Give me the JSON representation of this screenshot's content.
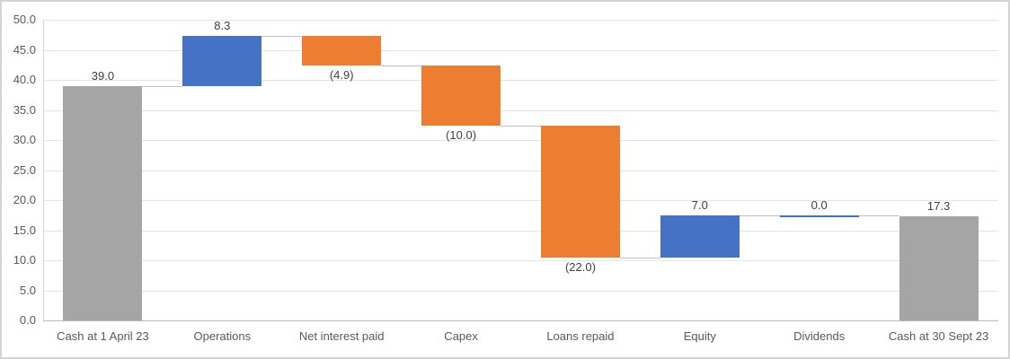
{
  "chart_data": {
    "type": "bar",
    "subtype": "waterfall",
    "title": "",
    "xlabel": "",
    "ylabel": "",
    "ylim": [
      0,
      50
    ],
    "y_tick_step": 5,
    "y_ticks": [
      "0.0",
      "5.0",
      "10.0",
      "15.0",
      "20.0",
      "25.0",
      "30.0",
      "35.0",
      "40.0",
      "45.0",
      "50.0"
    ],
    "grid": true,
    "legend_position": "none",
    "categories": [
      "Cash at 1 April 23",
      "Operations",
      "Net interest paid",
      "Capex",
      "Loans repaid",
      "Equity",
      "Dividends",
      "Cash at 30 Sept 23"
    ],
    "columns": [
      {
        "category": "Cash at 1 April 23",
        "value": 39.0,
        "label": "39.0",
        "role": "total",
        "start": 0,
        "end": 39.0
      },
      {
        "category": "Operations",
        "value": 8.3,
        "label": "8.3",
        "role": "increase",
        "start": 39.0,
        "end": 47.3
      },
      {
        "category": "Net interest paid",
        "value": -4.9,
        "label": "(4.9)",
        "role": "decrease",
        "start": 47.3,
        "end": 42.4
      },
      {
        "category": "Capex",
        "value": -10.0,
        "label": "(10.0)",
        "role": "decrease",
        "start": 42.4,
        "end": 32.4
      },
      {
        "category": "Loans repaid",
        "value": -22.0,
        "label": "(22.0)",
        "role": "decrease",
        "start": 32.4,
        "end": 10.4
      },
      {
        "category": "Equity",
        "value": 7.0,
        "label": "7.0",
        "role": "increase",
        "start": 10.4,
        "end": 17.4
      },
      {
        "category": "Dividends",
        "value": 0.0,
        "label": "0.0",
        "role": "increase",
        "start": 17.4,
        "end": 17.4
      },
      {
        "category": "Cash at 30 Sept 23",
        "value": 17.3,
        "label": "17.3",
        "role": "total",
        "start": 0,
        "end": 17.3
      }
    ],
    "colors": {
      "increase": "#4472C4",
      "decrease": "#ED7D31",
      "total": "#A5A5A5",
      "connector": "#BFBFBF",
      "gridline": "#E4E4E4",
      "axis_line": "#B9B9B9",
      "value_label_text": "#404040",
      "axis_label_text": "#595959"
    }
  }
}
